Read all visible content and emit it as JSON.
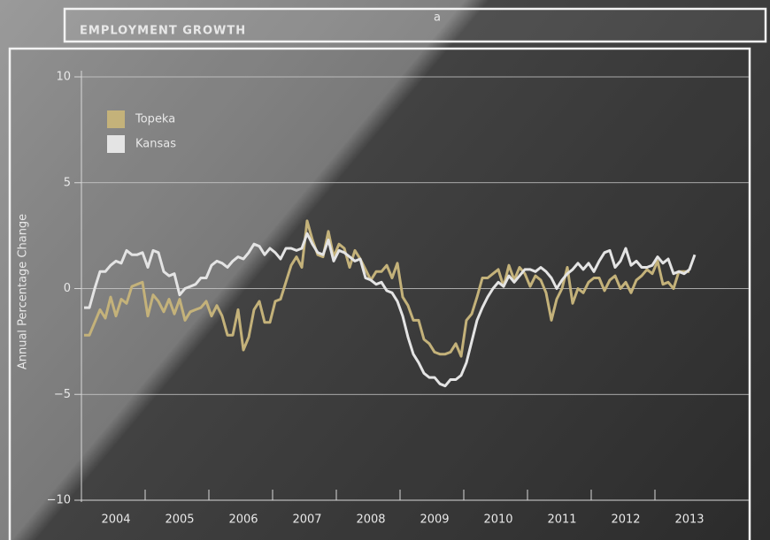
{
  "chart_data": {
    "type": "line",
    "title": "EMPLOYMENT GROWTH",
    "title_superscript": "a",
    "ylabel": "Annual Percentage Change",
    "ylim": [
      -10,
      10
    ],
    "yticks": [
      {
        "value": -10,
        "label": "−10"
      },
      {
        "value": -5,
        "label": "−5"
      },
      0,
      5,
      10
    ],
    "grid": true,
    "legend": "upper left",
    "categories": [
      null,
      null,
      null,
      null,
      null,
      null,
      "2004",
      null,
      null,
      null,
      null,
      null,
      null,
      null,
      null,
      null,
      null,
      null,
      "2005",
      null,
      null,
      null,
      null,
      null,
      null,
      null,
      null,
      null,
      null,
      null,
      "2006",
      null,
      null,
      null,
      null,
      null,
      null,
      null,
      null,
      null,
      null,
      null,
      "2007",
      null,
      null,
      null,
      null,
      null,
      null,
      null,
      null,
      null,
      null,
      null,
      "2008",
      null,
      null,
      null,
      null,
      null,
      null,
      null,
      null,
      null,
      null,
      null,
      "2009",
      null,
      null,
      null,
      null,
      null,
      null,
      null,
      null,
      null,
      null,
      null,
      "2010",
      null,
      null,
      null,
      null,
      null,
      null,
      null,
      null,
      null,
      null,
      null,
      "2011",
      null,
      null,
      null,
      null,
      null,
      null,
      null,
      null,
      null,
      null,
      null,
      "2012",
      null,
      null,
      null,
      null,
      null,
      null,
      null,
      null,
      null,
      null,
      null,
      "2013",
      null
    ],
    "series": [
      {
        "name": "Topeka",
        "color": "#c4b27a",
        "values": [
          -2.2,
          -2.2,
          -1.6,
          -1.0,
          -1.4,
          -0.4,
          -1.3,
          -0.5,
          -0.7,
          0.1,
          0.2,
          0.3,
          -1.3,
          -0.3,
          -0.6,
          -1.1,
          -0.5,
          -1.2,
          -0.5,
          -1.5,
          -1.1,
          -1.0,
          -0.9,
          -0.6,
          -1.3,
          -0.8,
          -1.3,
          -2.2,
          -2.2,
          -1.0,
          -2.9,
          -2.3,
          -1.0,
          -0.6,
          -1.6,
          -1.6,
          -0.6,
          -0.5,
          0.3,
          1.1,
          1.5,
          1.0,
          3.2,
          2.3,
          1.6,
          1.5,
          2.7,
          1.5,
          2.1,
          1.9,
          1.0,
          1.8,
          1.4,
          0.9,
          0.4,
          0.8,
          0.8,
          1.1,
          0.5,
          1.2,
          -0.4,
          -0.8,
          -1.5,
          -1.5,
          -2.4,
          -2.6,
          -3.0,
          -3.1,
          -3.1,
          -3.0,
          -2.6,
          -3.2,
          -1.5,
          -1.2,
          -0.4,
          0.5,
          0.5,
          0.7,
          0.9,
          0.1,
          1.1,
          0.4,
          1.0,
          0.7,
          0.1,
          0.6,
          0.4,
          -0.2,
          -1.5,
          -0.5,
          0,
          1.0,
          -0.7,
          0,
          -0.2,
          0.3,
          0.5,
          0.5,
          -0.1,
          0.4,
          0.6,
          0,
          0.3,
          -0.2,
          0.4,
          0.6,
          0.9,
          0.7,
          1.3,
          0.2,
          0.3,
          0,
          0.8,
          0.8,
          0.8,
          null
        ]
      },
      {
        "name": "Kansas",
        "color": "#e4e4e4",
        "values": [
          -0.9,
          -0.9,
          0,
          0.8,
          0.8,
          1.1,
          1.3,
          1.2,
          1.8,
          1.6,
          1.6,
          1.7,
          1.0,
          1.8,
          1.7,
          0.8,
          0.6,
          0.7,
          -0.3,
          0,
          0.1,
          0.2,
          0.5,
          0.5,
          1.1,
          1.3,
          1.2,
          1.0,
          1.3,
          1.5,
          1.4,
          1.7,
          2.1,
          2.0,
          1.6,
          1.9,
          1.7,
          1.4,
          1.9,
          1.9,
          1.8,
          1.9,
          2.6,
          2.1,
          1.7,
          1.6,
          2.3,
          1.3,
          1.8,
          1.7,
          1.5,
          1.3,
          1.4,
          0.5,
          0.4,
          0.2,
          0.3,
          -0.1,
          -0.2,
          -0.6,
          -1.3,
          -2.3,
          -3.1,
          -3.5,
          -4.0,
          -4.2,
          -4.2,
          -4.5,
          -4.6,
          -4.3,
          -4.3,
          -4.1,
          -3.5,
          -2.5,
          -1.5,
          -0.9,
          -0.4,
          0,
          0.3,
          0.1,
          0.6,
          0.3,
          0.6,
          0.9,
          0.9,
          0.8,
          1.0,
          0.8,
          0.5,
          0,
          0.4,
          0.7,
          0.9,
          1.2,
          0.9,
          1.2,
          0.8,
          1.3,
          1.7,
          1.8,
          1.0,
          1.3,
          1.9,
          1.1,
          1.3,
          1.0,
          1.0,
          1.1,
          1.5,
          1.2,
          1.4,
          0.7,
          0.8,
          0.7,
          0.9,
          1.6
        ]
      }
    ]
  }
}
